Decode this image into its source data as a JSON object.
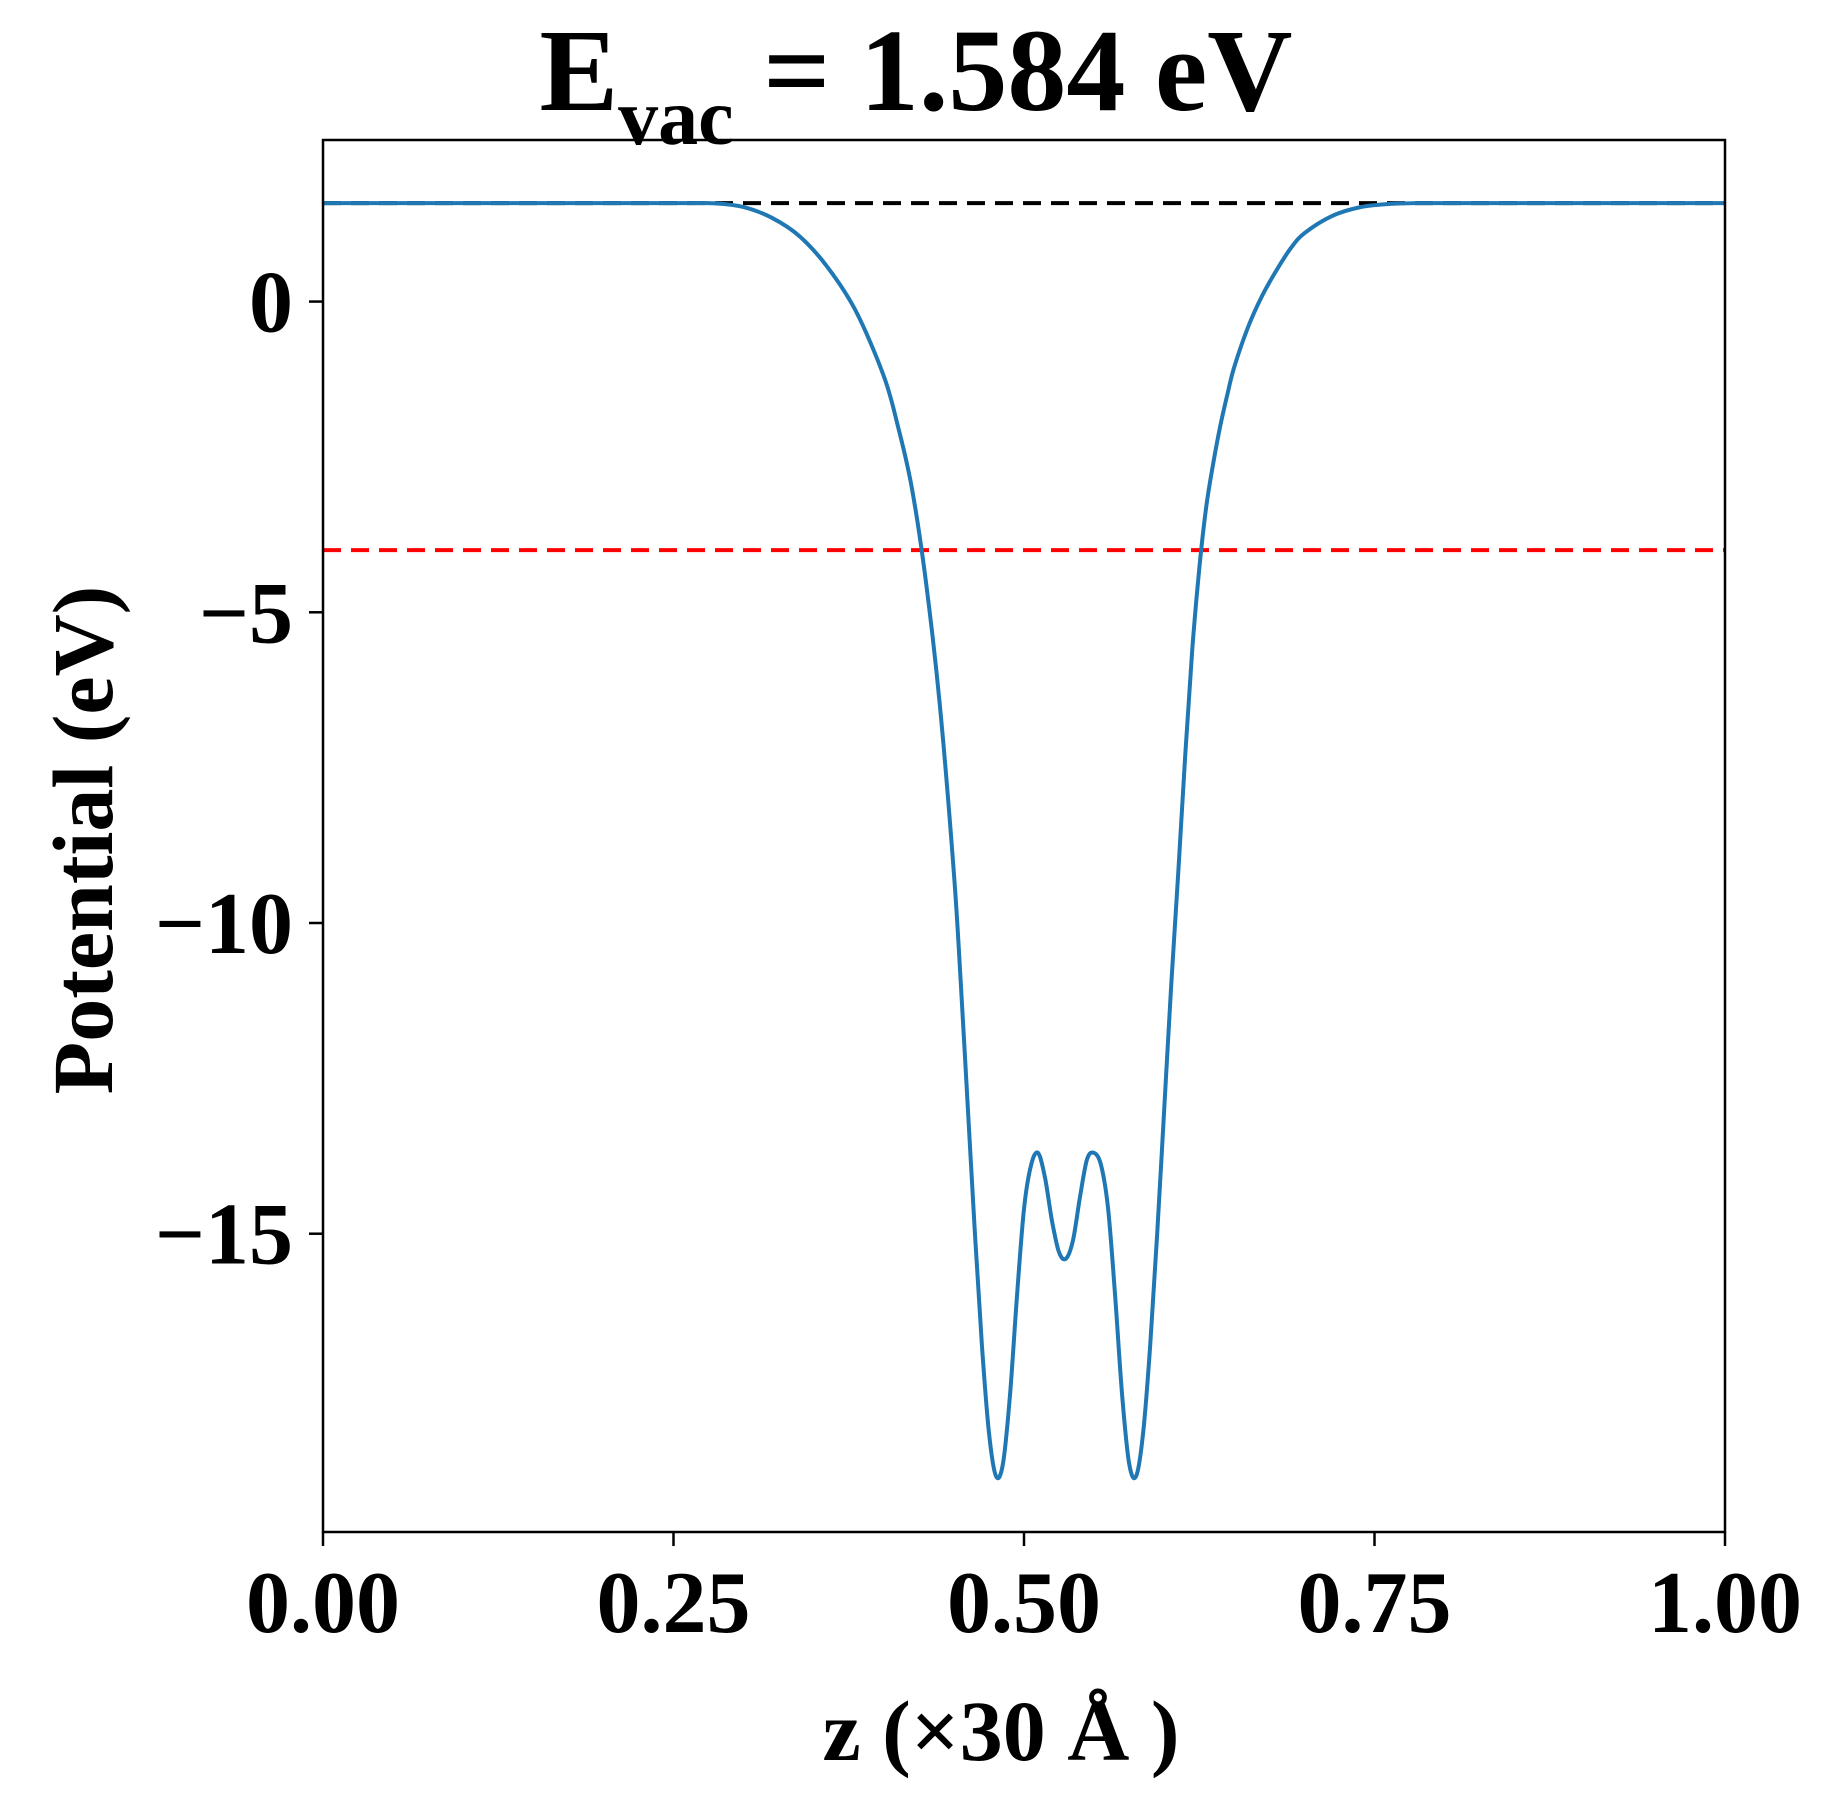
{
  "chart_data": {
    "type": "line",
    "title": {
      "main": "E",
      "subscript": "vac",
      "rest": " = 1.584 eV"
    },
    "xlabel": "z (×30 Å )",
    "ylabel": "Potential (eV)",
    "xlim": [
      0.0,
      1.0
    ],
    "ylim": [
      -19.8,
      2.6
    ],
    "x_ticks": [
      {
        "value": 0.0,
        "label": "0.00"
      },
      {
        "value": 0.25,
        "label": "0.25"
      },
      {
        "value": 0.5,
        "label": "0.50"
      },
      {
        "value": 0.75,
        "label": "0.75"
      },
      {
        "value": 1.0,
        "label": "1.00"
      }
    ],
    "y_ticks": [
      {
        "value": 0,
        "label": "0"
      },
      {
        "value": -5,
        "label": "−5"
      },
      {
        "value": -10,
        "label": "−10"
      },
      {
        "value": -15,
        "label": "−15"
      }
    ],
    "grid": false,
    "series": [
      {
        "color": "#1f77b4",
        "x": [
          0.0,
          0.05,
          0.1,
          0.15,
          0.2,
          0.25,
          0.28,
          0.3,
          0.32,
          0.34,
          0.36,
          0.38,
          0.4,
          0.41,
          0.42,
          0.43,
          0.44,
          0.45,
          0.455,
          0.46,
          0.465,
          0.47,
          0.475,
          0.48,
          0.485,
          0.49,
          0.495,
          0.5,
          0.505,
          0.51,
          0.515,
          0.52,
          0.525,
          0.53,
          0.535,
          0.54,
          0.545,
          0.55,
          0.555,
          0.56,
          0.565,
          0.57,
          0.575,
          0.58,
          0.585,
          0.59,
          0.595,
          0.6,
          0.605,
          0.61,
          0.615,
          0.62,
          0.625,
          0.63,
          0.635,
          0.64,
          0.645,
          0.65,
          0.66,
          0.67,
          0.68,
          0.69,
          0.7,
          0.72,
          0.74,
          0.76,
          0.78,
          0.8,
          0.82,
          0.85,
          0.9,
          0.95,
          1.0
        ],
        "y": [
          1.584,
          1.584,
          1.584,
          1.584,
          1.584,
          1.584,
          1.58,
          1.52,
          1.35,
          1.05,
          0.55,
          -0.15,
          -1.2,
          -2.0,
          -3.0,
          -4.5,
          -6.5,
          -9.2,
          -11.0,
          -13.0,
          -15.0,
          -16.8,
          -18.2,
          -18.9,
          -18.7,
          -17.6,
          -16.0,
          -14.6,
          -13.9,
          -13.7,
          -14.1,
          -14.8,
          -15.3,
          -15.4,
          -15.1,
          -14.4,
          -13.8,
          -13.7,
          -13.9,
          -14.6,
          -16.0,
          -17.6,
          -18.7,
          -18.9,
          -18.2,
          -16.8,
          -15.0,
          -13.0,
          -11.0,
          -9.2,
          -7.3,
          -5.6,
          -4.3,
          -3.3,
          -2.6,
          -2.0,
          -1.5,
          -1.05,
          -0.4,
          0.1,
          0.5,
          0.85,
          1.1,
          1.38,
          1.52,
          1.57,
          1.584,
          1.584,
          1.584,
          1.584,
          1.584,
          1.584,
          1.584
        ]
      }
    ],
    "reference_lines": [
      {
        "y": 1.584,
        "color": "#000000",
        "style": "dashed"
      },
      {
        "y": -4.0,
        "color": "#ff0000",
        "style": "dashed"
      }
    ]
  }
}
